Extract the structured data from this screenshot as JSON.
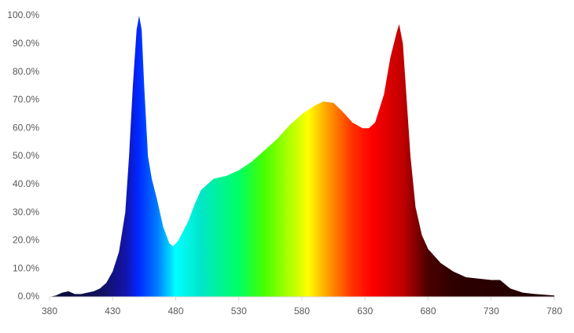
{
  "chart_data": {
    "type": "area",
    "x": [
      380,
      385,
      390,
      395,
      400,
      405,
      410,
      415,
      420,
      425,
      430,
      435,
      440,
      443,
      446,
      449,
      451,
      453,
      455,
      458,
      461,
      465,
      470,
      475,
      478,
      482,
      490,
      495,
      500,
      505,
      510,
      520,
      530,
      540,
      550,
      560,
      570,
      580,
      590,
      597,
      605,
      612,
      620,
      628,
      633,
      638,
      645,
      650,
      655,
      657,
      660,
      663,
      666,
      670,
      675,
      680,
      690,
      700,
      710,
      720,
      730,
      737,
      745,
      755,
      765,
      780
    ],
    "values": [
      0,
      0.5,
      1.5,
      2,
      1,
      1,
      1.5,
      2,
      3,
      5,
      9,
      16,
      30,
      50,
      75,
      95,
      100,
      95,
      75,
      50,
      42,
      35,
      25,
      19,
      18,
      20,
      27,
      33,
      38,
      40,
      42,
      43,
      45,
      48,
      52,
      56,
      61,
      65,
      68,
      69.5,
      69,
      66,
      62,
      60,
      60,
      62,
      72,
      85,
      94,
      97,
      90,
      70,
      50,
      32,
      22,
      17,
      12,
      9,
      7,
      6.5,
      6,
      6,
      3,
      1.5,
      1,
      0.5
    ],
    "colorscale": [
      [
        380,
        "#0a0a30"
      ],
      [
        420,
        "#10105c"
      ],
      [
        440,
        "#1414a8"
      ],
      [
        450,
        "#0026ff"
      ],
      [
        465,
        "#0078ff"
      ],
      [
        480,
        "#00ffff"
      ],
      [
        500,
        "#00e6c8"
      ],
      [
        530,
        "#00ff64"
      ],
      [
        550,
        "#46ff00"
      ],
      [
        575,
        "#c8ff00"
      ],
      [
        585,
        "#ffff00"
      ],
      [
        600,
        "#ffa000"
      ],
      [
        620,
        "#ff3000"
      ],
      [
        635,
        "#ff0000"
      ],
      [
        660,
        "#c00000"
      ],
      [
        680,
        "#4a0000"
      ],
      [
        700,
        "#2e0000"
      ],
      [
        780,
        "#1e0000"
      ]
    ],
    "xlim": [
      380,
      780
    ],
    "xticks": [
      380,
      430,
      480,
      530,
      580,
      630,
      680,
      730,
      780
    ],
    "ylim": [
      0,
      100
    ],
    "yticks": [
      {
        "value": 0,
        "label": "0.0%"
      },
      {
        "value": 10,
        "label": "10.0%"
      },
      {
        "value": 20,
        "label": "20.0%"
      },
      {
        "value": 30,
        "label": "30.0%"
      },
      {
        "value": 40,
        "label": "40.0%"
      },
      {
        "value": 50,
        "label": "50.0%"
      },
      {
        "value": 60,
        "label": "60.0%"
      },
      {
        "value": 70,
        "label": "70.0%"
      },
      {
        "value": 80,
        "label": "80.0%"
      },
      {
        "value": 90,
        "label": "90.0%"
      },
      {
        "value": 100,
        "label": "100.0%"
      }
    ],
    "grid": false
  }
}
